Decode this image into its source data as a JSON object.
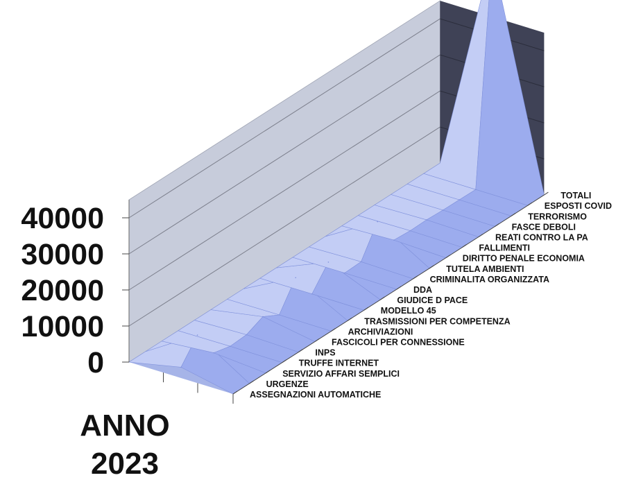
{
  "chart_data": {
    "type": "area",
    "view": "3d",
    "categories": [
      "ASSEGNAZIONI AUTOMATICHE",
      "URGENZE",
      "SERVIZIO AFFARI SEMPLICI",
      "TRUFFE INTERNET",
      "INPS",
      "FASCICOLI PER CONNESSIONE",
      "ARCHIVIAZIONI",
      "TRASMISSIONI PER COMPETENZA",
      "MODELLO 45",
      "GIUDICE D PACE",
      "DDA",
      "CRIMINALITA ORGANIZZATA",
      "TUTELA AMBIENTI",
      "DIRITTO PENALE ECONOMIA",
      "FALLIMENTI",
      "REATI CONTRO LA PA",
      "FASCE DEBOLI",
      "TERRORISMO",
      "ESPOSTI COVID",
      "TOTALI"
    ],
    "series": [
      {
        "name": "ANNO 2023",
        "values": [
          3000,
          9000,
          1200,
          100,
          400,
          2500,
          100,
          7500,
          100,
          6000,
          100,
          300,
          8500,
          500,
          200,
          300,
          100,
          50,
          0,
          62000
        ]
      }
    ],
    "y_ticks": [
      "0",
      "10000",
      "20000",
      "30000",
      "40000"
    ],
    "ylim": [
      0,
      45000
    ],
    "xlabel": "ANNO 2023",
    "grid": true,
    "colors": {
      "surface": "#9cacee",
      "surface_light": "#c3cdf5",
      "surface_dark": "#8092dc",
      "back_wall": "#c7ccdb",
      "side_wall": "#3f4256",
      "floor": "#a6b4e8",
      "grid_line": "#7c7f8c",
      "text": "#111111"
    }
  },
  "axis_title": {
    "line1": "ANNO",
    "line2": "2023"
  }
}
